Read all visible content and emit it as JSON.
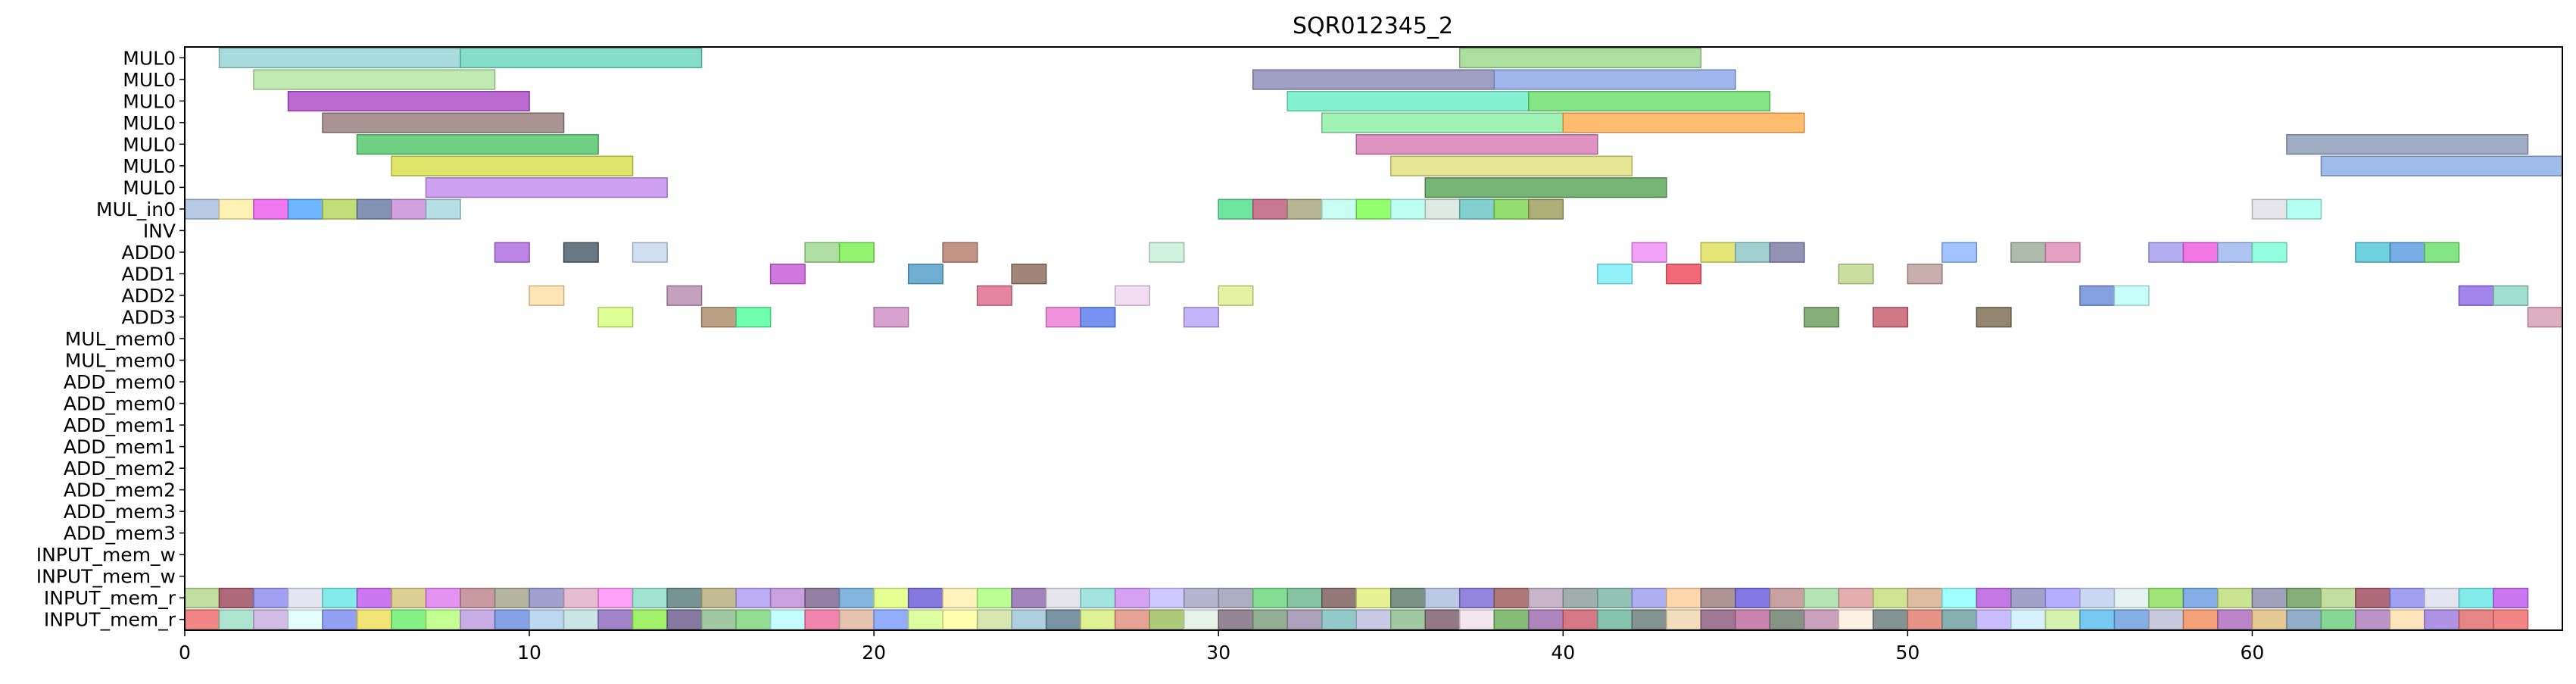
{
  "chart_data": {
    "type": "gantt",
    "title": "SQR012345_2",
    "xlabel": "",
    "ylabel": "",
    "xlim": [
      0,
      69
    ],
    "xticks": [
      0,
      10,
      20,
      30,
      40,
      50,
      60
    ],
    "grid": false,
    "rows": [
      "MUL0",
      "MUL0",
      "MUL0",
      "MUL0",
      "MUL0",
      "MUL0",
      "MUL0",
      "MUL_in0",
      "INV",
      "ADD0",
      "ADD1",
      "ADD2",
      "ADD3",
      "MUL_mem0",
      "MUL_mem0",
      "ADD_mem0",
      "ADD_mem0",
      "ADD_mem1",
      "ADD_mem1",
      "ADD_mem2",
      "ADD_mem2",
      "ADD_mem3",
      "ADD_mem3",
      "INPUT_mem_w",
      "INPUT_mem_w",
      "INPUT_mem_r",
      "INPUT_mem_r"
    ],
    "bars": [
      {
        "row": 0,
        "start": 1,
        "end": 8,
        "color": "#9ad6d6"
      },
      {
        "row": 0,
        "start": 8,
        "end": 15,
        "color": "#6fd8c0"
      },
      {
        "row": 0,
        "start": 37,
        "end": 44,
        "color": "#9fd98f"
      },
      {
        "row": 1,
        "start": 2,
        "end": 9,
        "color": "#b5e6a3"
      },
      {
        "row": 1,
        "start": 31,
        "end": 38,
        "color": "#8e8eb8"
      },
      {
        "row": 1,
        "start": 38,
        "end": 45,
        "color": "#8fa8e6"
      },
      {
        "row": 2,
        "start": 3,
        "end": 10,
        "color": "#ae4fc8"
      },
      {
        "row": 2,
        "start": 32,
        "end": 39,
        "color": "#6ff0c8"
      },
      {
        "row": 2,
        "start": 39,
        "end": 46,
        "color": "#6fe06f"
      },
      {
        "row": 3,
        "start": 4,
        "end": 11,
        "color": "#9a8080"
      },
      {
        "row": 3,
        "start": 33,
        "end": 40,
        "color": "#8ff0a8"
      },
      {
        "row": 3,
        "start": 40,
        "end": 47,
        "color": "#ffb056"
      },
      {
        "row": 4,
        "start": 5,
        "end": 12,
        "color": "#56c86f"
      },
      {
        "row": 4,
        "start": 34,
        "end": 41,
        "color": "#d880b8"
      },
      {
        "row": 4,
        "start": 61,
        "end": 68,
        "color": "#8f9fba"
      },
      {
        "row": 5,
        "start": 6,
        "end": 13,
        "color": "#d8e04f"
      },
      {
        "row": 5,
        "start": 35,
        "end": 42,
        "color": "#e0e080"
      },
      {
        "row": 5,
        "start": 62,
        "end": 69,
        "color": "#8fb0e6"
      },
      {
        "row": 6,
        "start": 7,
        "end": 14,
        "color": "#c890f0"
      },
      {
        "row": 6,
        "start": 36,
        "end": 43,
        "color": "#5fa85f"
      },
      {
        "row": 7,
        "start": 0,
        "end": 1,
        "color": "#a8c0e0"
      },
      {
        "row": 7,
        "start": 1,
        "end": 2,
        "color": "#fff0a8"
      },
      {
        "row": 7,
        "start": 2,
        "end": 3,
        "color": "#f060f0"
      },
      {
        "row": 7,
        "start": 3,
        "end": 4,
        "color": "#56a8ff"
      },
      {
        "row": 7,
        "start": 4,
        "end": 5,
        "color": "#b8d860"
      },
      {
        "row": 7,
        "start": 5,
        "end": 6,
        "color": "#6f80a8"
      },
      {
        "row": 7,
        "start": 6,
        "end": 7,
        "color": "#c890d8"
      },
      {
        "row": 7,
        "start": 7,
        "end": 8,
        "color": "#a8d8e0"
      },
      {
        "row": 7,
        "start": 30,
        "end": 31,
        "color": "#56e08f"
      },
      {
        "row": 7,
        "start": 31,
        "end": 32,
        "color": "#c06080"
      },
      {
        "row": 7,
        "start": 32,
        "end": 33,
        "color": "#a8a880"
      },
      {
        "row": 7,
        "start": 33,
        "end": 34,
        "color": "#c0fff0"
      },
      {
        "row": 7,
        "start": 34,
        "end": 35,
        "color": "#80ff56"
      },
      {
        "row": 7,
        "start": 35,
        "end": 36,
        "color": "#b0fff0"
      },
      {
        "row": 7,
        "start": 36,
        "end": 37,
        "color": "#d8e8e0"
      },
      {
        "row": 7,
        "start": 37,
        "end": 38,
        "color": "#6fc8c8"
      },
      {
        "row": 7,
        "start": 38,
        "end": 39,
        "color": "#80d856"
      },
      {
        "row": 7,
        "start": 39,
        "end": 40,
        "color": "#a0a060"
      },
      {
        "row": 7,
        "start": 60,
        "end": 61,
        "color": "#e0e0e8"
      },
      {
        "row": 7,
        "start": 61,
        "end": 62,
        "color": "#a8fff0"
      },
      {
        "row": 9,
        "start": 9,
        "end": 10,
        "color": "#b06fe0"
      },
      {
        "row": 9,
        "start": 11,
        "end": 12,
        "color": "#4f6070"
      },
      {
        "row": 9,
        "start": 13,
        "end": 14,
        "color": "#c8d8f0"
      },
      {
        "row": 9,
        "start": 18,
        "end": 19,
        "color": "#a0d890"
      },
      {
        "row": 9,
        "start": 19,
        "end": 20,
        "color": "#80f056"
      },
      {
        "row": 9,
        "start": 22,
        "end": 23,
        "color": "#b88070"
      },
      {
        "row": 9,
        "start": 28,
        "end": 29,
        "color": "#c8f0d8"
      },
      {
        "row": 9,
        "start": 42,
        "end": 43,
        "color": "#f090f8"
      },
      {
        "row": 9,
        "start": 44,
        "end": 45,
        "color": "#e0e060"
      },
      {
        "row": 9,
        "start": 45,
        "end": 46,
        "color": "#90c8c8"
      },
      {
        "row": 9,
        "start": 46,
        "end": 47,
        "color": "#8080a8"
      },
      {
        "row": 9,
        "start": 51,
        "end": 52,
        "color": "#90b8ff"
      },
      {
        "row": 9,
        "start": 53,
        "end": 54,
        "color": "#a0b0a0"
      },
      {
        "row": 9,
        "start": 54,
        "end": 55,
        "color": "#e090b8"
      },
      {
        "row": 9,
        "start": 57,
        "end": 58,
        "color": "#a8a0f0"
      },
      {
        "row": 9,
        "start": 58,
        "end": 59,
        "color": "#f060e0"
      },
      {
        "row": 9,
        "start": 59,
        "end": 60,
        "color": "#a0b8f0"
      },
      {
        "row": 9,
        "start": 60,
        "end": 61,
        "color": "#80ffd8"
      },
      {
        "row": 9,
        "start": 63,
        "end": 64,
        "color": "#56c8d8"
      },
      {
        "row": 9,
        "start": 64,
        "end": 65,
        "color": "#5fa0e0"
      },
      {
        "row": 9,
        "start": 65,
        "end": 66,
        "color": "#6fe06f"
      },
      {
        "row": 10,
        "start": 17,
        "end": 18,
        "color": "#c860d8"
      },
      {
        "row": 10,
        "start": 21,
        "end": 22,
        "color": "#56a0c8"
      },
      {
        "row": 10,
        "start": 24,
        "end": 25,
        "color": "#8f7060"
      },
      {
        "row": 10,
        "start": 41,
        "end": 42,
        "color": "#80f0f8"
      },
      {
        "row": 10,
        "start": 43,
        "end": 44,
        "color": "#f05060"
      },
      {
        "row": 10,
        "start": 48,
        "end": 49,
        "color": "#c0d890"
      },
      {
        "row": 10,
        "start": 50,
        "end": 51,
        "color": "#c0a0a0"
      },
      {
        "row": 11,
        "start": 10,
        "end": 11,
        "color": "#ffe0a8"
      },
      {
        "row": 11,
        "start": 14,
        "end": 15,
        "color": "#b890b0"
      },
      {
        "row": 11,
        "start": 23,
        "end": 24,
        "color": "#e07090"
      },
      {
        "row": 11,
        "start": 27,
        "end": 28,
        "color": "#f0d8f0"
      },
      {
        "row": 11,
        "start": 30,
        "end": 31,
        "color": "#e0f090"
      },
      {
        "row": 11,
        "start": 55,
        "end": 56,
        "color": "#6f8fd8"
      },
      {
        "row": 11,
        "start": 56,
        "end": 57,
        "color": "#c0fff8"
      },
      {
        "row": 11,
        "start": 66,
        "end": 67,
        "color": "#9070e8"
      },
      {
        "row": 11,
        "start": 67,
        "end": 68,
        "color": "#90d8c8"
      },
      {
        "row": 12,
        "start": 12,
        "end": 13,
        "color": "#d8ff80"
      },
      {
        "row": 12,
        "start": 15,
        "end": 16,
        "color": "#b09070"
      },
      {
        "row": 12,
        "start": 16,
        "end": 17,
        "color": "#56ff9f"
      },
      {
        "row": 12,
        "start": 20,
        "end": 21,
        "color": "#d090c8"
      },
      {
        "row": 12,
        "start": 25,
        "end": 26,
        "color": "#f080d8"
      },
      {
        "row": 12,
        "start": 26,
        "end": 27,
        "color": "#5f80f0"
      },
      {
        "row": 12,
        "start": 29,
        "end": 30,
        "color": "#b8a8f8"
      },
      {
        "row": 12,
        "start": 47,
        "end": 48,
        "color": "#70a060"
      },
      {
        "row": 12,
        "start": 49,
        "end": 50,
        "color": "#c86070"
      },
      {
        "row": 12,
        "start": 52,
        "end": 53,
        "color": "#807056"
      },
      {
        "row": 12,
        "start": 68,
        "end": 69,
        "color": "#d8a0b8"
      }
    ]
  }
}
